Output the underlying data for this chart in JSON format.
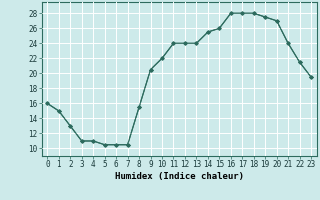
{
  "x": [
    0,
    1,
    2,
    3,
    4,
    5,
    6,
    7,
    8,
    9,
    10,
    11,
    12,
    13,
    14,
    15,
    16,
    17,
    18,
    19,
    20,
    21,
    22,
    23
  ],
  "y": [
    16,
    15,
    13,
    11,
    11,
    10.5,
    10.5,
    10.5,
    15.5,
    20.5,
    22,
    24,
    24,
    24,
    25.5,
    26,
    28,
    28,
    28,
    27.5,
    27,
    24,
    21.5,
    19.5
  ],
  "line_color": "#2d6b5e",
  "marker_color": "#2d6b5e",
  "bg_color": "#cdeaea",
  "grid_color": "#b0d8d8",
  "xlabel": "Humidex (Indice chaleur)",
  "xlim": [
    -0.5,
    23.5
  ],
  "ylim": [
    9,
    29.5
  ],
  "yticks": [
    10,
    12,
    14,
    16,
    18,
    20,
    22,
    24,
    26,
    28
  ],
  "xticks": [
    0,
    1,
    2,
    3,
    4,
    5,
    6,
    7,
    8,
    9,
    10,
    11,
    12,
    13,
    14,
    15,
    16,
    17,
    18,
    19,
    20,
    21,
    22,
    23
  ],
  "xlabel_fontsize": 6.5,
  "tick_fontsize": 5.5
}
